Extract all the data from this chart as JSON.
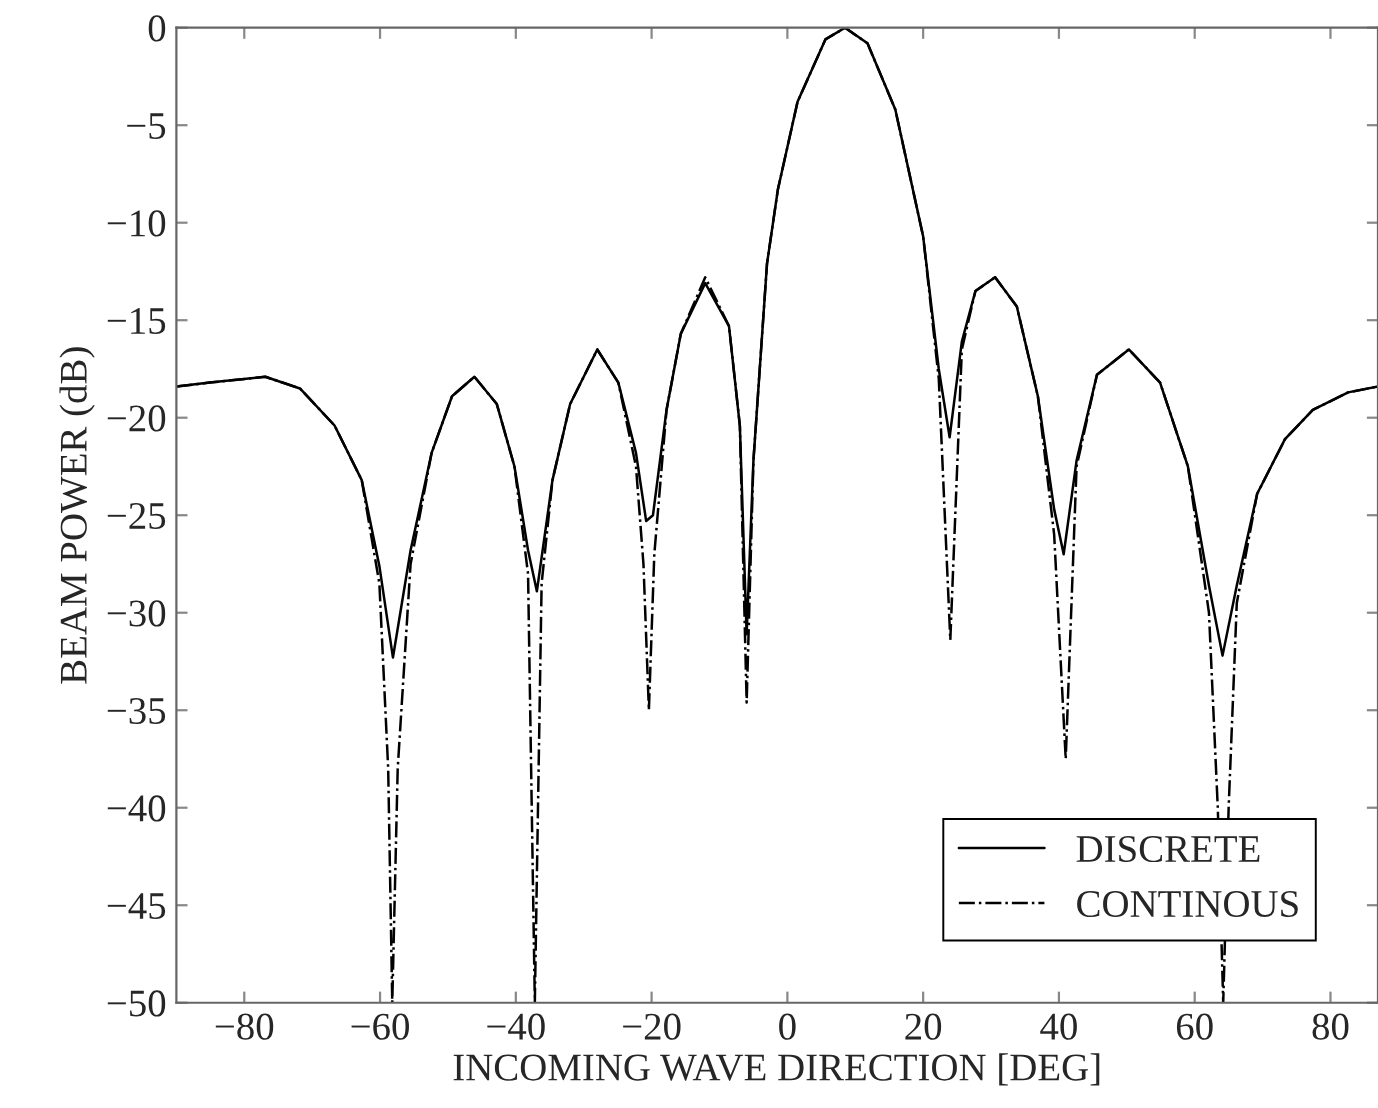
{
  "chart_data": {
    "type": "line",
    "xlabel": "INCOMING WAVE DIRECTION [DEG]",
    "ylabel": "BEAM POWER (dB)",
    "xlim": [
      -90,
      87
    ],
    "ylim": [
      -50,
      0
    ],
    "xticks": [
      {
        "value": -80,
        "label": "−80"
      },
      {
        "value": -60,
        "label": "−60"
      },
      {
        "value": -40,
        "label": "−40"
      },
      {
        "value": -20,
        "label": "−20"
      },
      0,
      20,
      40,
      60,
      80
    ],
    "yticks": [
      {
        "value": -50,
        "label": "−50"
      },
      {
        "value": -45,
        "label": "−45"
      },
      {
        "value": -40,
        "label": "−40"
      },
      {
        "value": -35,
        "label": "−35"
      },
      {
        "value": -30,
        "label": "−30"
      },
      {
        "value": -25,
        "label": "−25"
      },
      {
        "value": -20,
        "label": "−20"
      },
      {
        "value": -15,
        "label": "−15"
      },
      {
        "value": -10,
        "label": "−10"
      },
      {
        "value": -5,
        "label": "−5"
      },
      0
    ],
    "grid": false,
    "legend": "bottom right",
    "marker": "none",
    "series": [
      {
        "name": "DISCRETE",
        "color": "#000000",
        "line_style": "solid",
        "x": [
          -90,
          -85.1,
          -76.9,
          -71.8,
          -66.7,
          -62.7,
          -60.1,
          -58.1,
          -55.5,
          -52.4,
          -49.4,
          -46.1,
          -42.8,
          -40.2,
          -38.2,
          -36.9,
          -34.6,
          -32.0,
          -28.0,
          -24.9,
          -22.3,
          -20.8,
          -19.8,
          -17.8,
          -15.7,
          -12.1,
          -8.6,
          -7.0,
          -6.0,
          -5.0,
          -3.0,
          -1.4,
          1.5,
          5.6,
          8.5,
          11.8,
          15.9,
          20.0,
          22.3,
          23.9,
          25.7,
          27.7,
          30.6,
          33.8,
          36.9,
          39.3,
          40.7,
          42.6,
          45.6,
          50.3,
          54.9,
          59.0,
          62.1,
          64.1,
          66.2,
          69.2,
          73.3,
          77.4,
          82.6,
          87
        ],
        "values": [
          -18.4,
          -18.2,
          -17.9,
          -18.5,
          -20.4,
          -23.2,
          -27.6,
          -32.3,
          -26.8,
          -21.8,
          -18.9,
          -17.9,
          -19.3,
          -22.5,
          -26.8,
          -28.9,
          -23.2,
          -19.3,
          -16.5,
          -18.2,
          -21.8,
          -25.3,
          -25.0,
          -19.6,
          -15.7,
          -13.1,
          -15.3,
          -20.4,
          -31.1,
          -22.2,
          -12.1,
          -8.3,
          -3.8,
          -0.6,
          0,
          -0.8,
          -4.2,
          -10.7,
          -17.5,
          -21.0,
          -16.1,
          -13.5,
          -12.8,
          -14.3,
          -18.9,
          -24.7,
          -27.0,
          -22.2,
          -17.8,
          -16.5,
          -18.2,
          -22.5,
          -28.6,
          -32.2,
          -28.6,
          -23.9,
          -21.1,
          -19.6,
          -18.7,
          -18.4
        ]
      },
      {
        "name": "CONTINOUS",
        "color": "#000000",
        "line_style": "dashdot",
        "x": [
          -90,
          -85.1,
          -76.9,
          -71.8,
          -66.7,
          -62.7,
          -60.1,
          -58.8,
          -58.2,
          -57.4,
          -55.5,
          -52.4,
          -49.4,
          -46.1,
          -42.8,
          -40.2,
          -38.2,
          -37.2,
          -36.2,
          -34.6,
          -32.0,
          -28.0,
          -24.9,
          -22.3,
          -21.2,
          -20.4,
          -19.6,
          -17.8,
          -15.7,
          -12.1,
          -8.6,
          -7.0,
          -6.0,
          -5.0,
          -3.0,
          -1.4,
          1.5,
          5.6,
          8.5,
          11.8,
          15.9,
          20.0,
          22.3,
          24.0,
          25.7,
          27.7,
          30.6,
          33.8,
          36.9,
          39.3,
          41.0,
          42.6,
          45.6,
          50.3,
          54.9,
          59.0,
          62.1,
          63.4,
          64.2,
          65.0,
          66.2,
          69.2,
          73.3,
          77.4,
          82.6,
          87
        ],
        "values": [
          -18.4,
          -18.2,
          -17.9,
          -18.5,
          -20.4,
          -23.2,
          -28.5,
          -38.0,
          -50,
          -38.0,
          -27.5,
          -21.8,
          -18.9,
          -17.9,
          -19.3,
          -22.5,
          -28.0,
          -50,
          -28.5,
          -23.2,
          -19.3,
          -16.5,
          -18.2,
          -22.5,
          -27.5,
          -35.0,
          -27.0,
          -19.6,
          -15.7,
          -12.8,
          -15.3,
          -20.4,
          -34.6,
          -22.2,
          -12.1,
          -8.3,
          -3.8,
          -0.6,
          0,
          -0.8,
          -4.2,
          -10.7,
          -18.0,
          -31.4,
          -16.5,
          -13.5,
          -12.8,
          -14.3,
          -18.9,
          -26.0,
          -37.5,
          -22.5,
          -17.8,
          -16.5,
          -18.2,
          -22.5,
          -30.0,
          -40.0,
          -50,
          -40.0,
          -29.5,
          -23.9,
          -21.1,
          -19.6,
          -18.7,
          -18.4
        ]
      }
    ]
  }
}
